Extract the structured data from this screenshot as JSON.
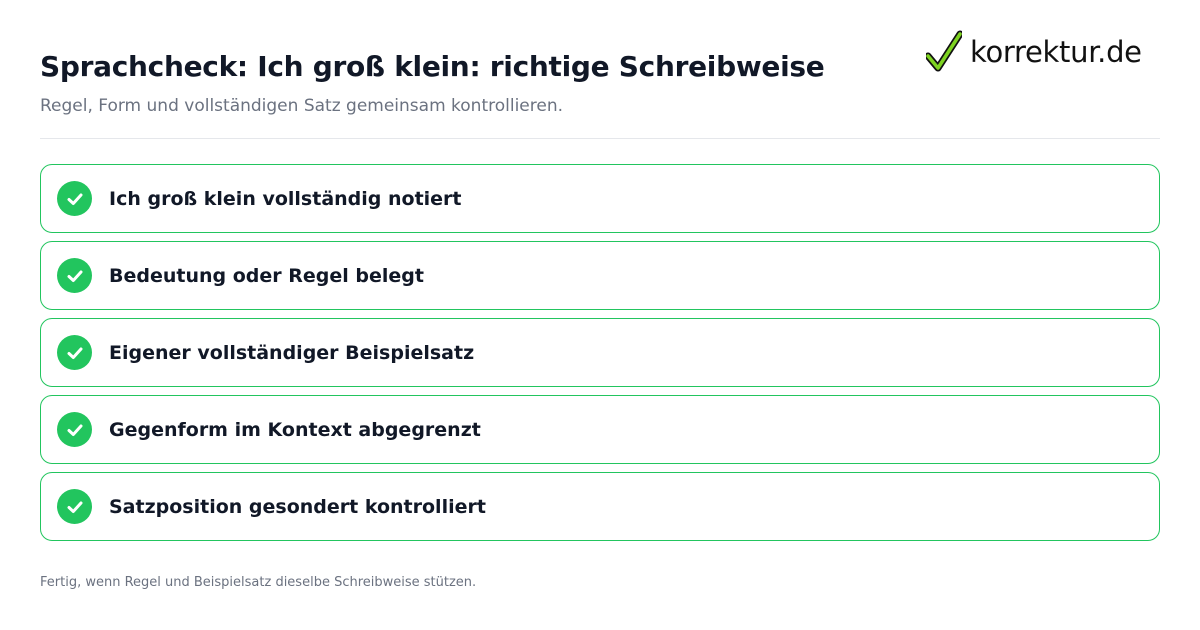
{
  "header": {
    "title": "Sprachcheck: Ich groß klein: richtige Schreibweise",
    "subtitle": "Regel, Form und vollständigen Satz gemeinsam kontrollieren."
  },
  "logo": {
    "text": "korrektur.de",
    "icon": "checkmark-icon",
    "check_color": "#7ED321"
  },
  "checklist": {
    "items": [
      {
        "label": "Ich groß klein vollständig notiert",
        "checked": true
      },
      {
        "label": "Bedeutung oder Regel belegt",
        "checked": true
      },
      {
        "label": "Eigener vollständiger Beispielsatz",
        "checked": true
      },
      {
        "label": "Gegenform im Kontext abgegrenzt",
        "checked": true
      },
      {
        "label": "Satzposition gesondert kontrolliert",
        "checked": true
      }
    ]
  },
  "footer": {
    "note": "Fertig, wenn Regel und Beispielsatz dieselbe Schreibweise stützen."
  },
  "colors": {
    "accent": "#22C55E",
    "text": "#111827",
    "muted": "#6B7280"
  }
}
